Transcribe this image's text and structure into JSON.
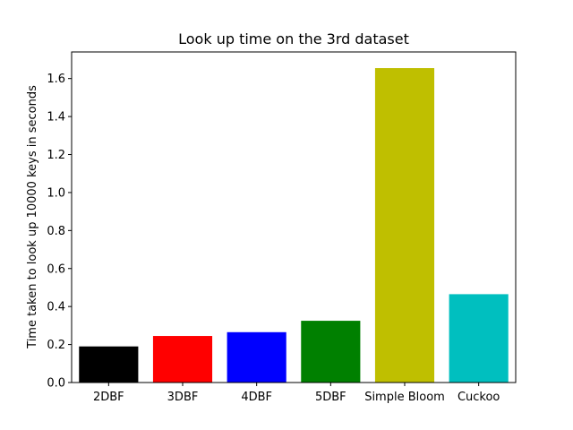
{
  "chart_data": {
    "type": "bar",
    "title": "Look up time on the 3rd dataset",
    "xlabel": "",
    "ylabel": "Time taken to look up 10000 keys in seconds",
    "categories": [
      "2DBF",
      "3DBF",
      "4DBF",
      "5DBF",
      "Simple Bloom",
      "Cuckoo"
    ],
    "values": [
      0.19,
      0.245,
      0.265,
      0.325,
      1.655,
      0.465
    ],
    "colors": [
      "#000000",
      "#ff0000",
      "#0000ff",
      "#008000",
      "#bfbf00",
      "#00bfbf"
    ],
    "ylim": [
      0,
      1.74
    ],
    "yticks": [
      0.0,
      0.2,
      0.4,
      0.6,
      0.8,
      1.0,
      1.2,
      1.4,
      1.6
    ],
    "ytick_labels": [
      "0.0",
      "0.2",
      "0.4",
      "0.6",
      "0.8",
      "1.0",
      "1.2",
      "1.4",
      "1.6"
    ],
    "grid": false,
    "legend": "none"
  }
}
